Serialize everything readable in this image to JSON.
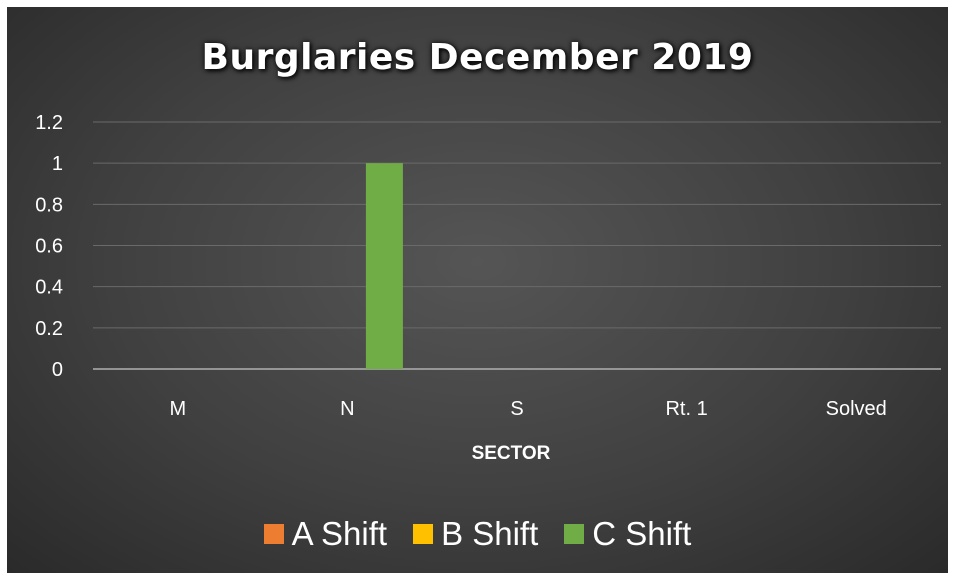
{
  "chart_data": {
    "type": "bar",
    "title": "Burglaries December 2019",
    "xlabel": "SECTOR",
    "ylabel": "",
    "categories": [
      "M",
      "N",
      "S",
      "Rt. 1",
      "Solved"
    ],
    "series": [
      {
        "name": "A Shift",
        "color": "#ed7d31",
        "values": [
          0,
          0,
          0,
          0,
          0
        ]
      },
      {
        "name": "B Shift",
        "color": "#ffc000",
        "values": [
          0,
          0,
          0,
          0,
          0
        ]
      },
      {
        "name": "C Shift",
        "color": "#70ad47",
        "values": [
          0,
          1,
          0,
          0,
          0
        ]
      }
    ],
    "ylim": [
      0,
      1.2
    ],
    "yticks": [
      "0",
      "0.2",
      "0.4",
      "0.6",
      "0.8",
      "1",
      "1.2"
    ],
    "grid": true,
    "legend_position": "bottom"
  }
}
